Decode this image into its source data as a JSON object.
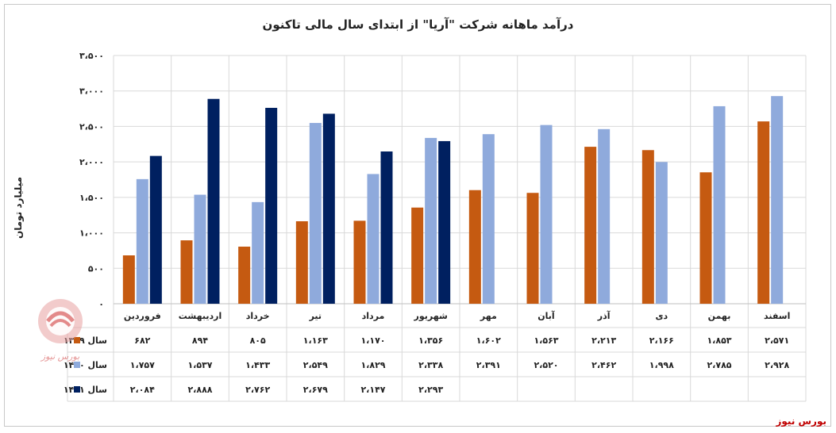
{
  "chart_data": {
    "type": "bar",
    "title": "درآمد ماهانه شرکت \"آریا\" از ابتدای سال مالی تاکنون",
    "ylabel": "میلیارد تومان",
    "ylim": [
      0,
      3500
    ],
    "yticks": [
      0,
      500,
      1000,
      1500,
      2000,
      2500,
      3000,
      3500
    ],
    "ytick_labels": [
      "۰",
      "۵۰۰",
      "۱،۰۰۰",
      "۱،۵۰۰",
      "۲،۰۰۰",
      "۲،۵۰۰",
      "۳،۰۰۰",
      "۳،۵۰۰"
    ],
    "categories": [
      "فروردین",
      "اردیبهشت",
      "خرداد",
      "تیر",
      "مرداد",
      "شهریور",
      "مهر",
      "آبان",
      "آذر",
      "دی",
      "بهمن",
      "اسفند"
    ],
    "series": [
      {
        "name": "سال ۱۳۹۹",
        "color": "#c55a11",
        "values": [
          682,
          894,
          805,
          1163,
          1170,
          1356,
          1602,
          1563,
          2213,
          2166,
          1853,
          2571
        ],
        "labels": [
          "۶۸۲",
          "۸۹۴",
          "۸۰۵",
          "۱،۱۶۳",
          "۱،۱۷۰",
          "۱،۳۵۶",
          "۱،۶۰۲",
          "۱،۵۶۳",
          "۲،۲۱۳",
          "۲،۱۶۶",
          "۱،۸۵۳",
          "۲،۵۷۱"
        ]
      },
      {
        "name": "سال ۱۴۰۰",
        "color": "#8faadc",
        "values": [
          1757,
          1537,
          1433,
          2549,
          1829,
          2338,
          2391,
          2520,
          2462,
          1998,
          2785,
          2928
        ],
        "labels": [
          "۱،۷۵۷",
          "۱،۵۳۷",
          "۱،۴۳۳",
          "۲،۵۴۹",
          "۱،۸۲۹",
          "۲،۳۳۸",
          "۲،۳۹۱",
          "۲،۵۲۰",
          "۲،۴۶۲",
          "۱،۹۹۸",
          "۲،۷۸۵",
          "۲،۹۲۸"
        ]
      },
      {
        "name": "سال ۱۴۰۱",
        "color": "#002060",
        "values": [
          2084,
          2888,
          2762,
          2679,
          2147,
          2293,
          null,
          null,
          null,
          null,
          null,
          null
        ],
        "labels": [
          "۲،۰۸۴",
          "۲،۸۸۸",
          "۲،۷۶۲",
          "۲،۶۷۹",
          "۲،۱۴۷",
          "۲،۲۹۳",
          "",
          "",
          "",
          "",
          "",
          ""
        ]
      }
    ],
    "grid": true,
    "legend": "table-left"
  },
  "source_label": "بورس نیوز",
  "watermark_text": "بورس نیوز"
}
